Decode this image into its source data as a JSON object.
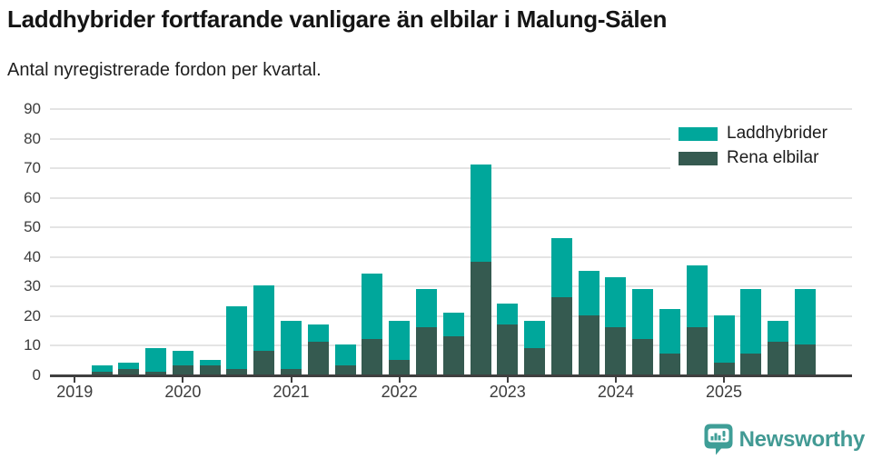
{
  "header": {
    "title": "Laddhybrider fortfarande vanligare än elbilar i Malung-Sälen",
    "subtitle": "Antal nyregistrerade fordon per kvartal."
  },
  "chart_data": {
    "type": "bar",
    "stacked": true,
    "title": "Laddhybrider fortfarande vanligare än elbilar i Malung-Sälen",
    "subtitle": "Antal nyregistrerade fordon per kvartal.",
    "categories": [
      "2019 Q1",
      "2019 Q2",
      "2019 Q3",
      "2019 Q4",
      "2020 Q1",
      "2020 Q2",
      "2020 Q3",
      "2020 Q4",
      "2021 Q1",
      "2021 Q2",
      "2021 Q3",
      "2021 Q4",
      "2022 Q1",
      "2022 Q2",
      "2022 Q3",
      "2022 Q4",
      "2023 Q1",
      "2023 Q2",
      "2023 Q3",
      "2023 Q4",
      "2024 Q1",
      "2024 Q2",
      "2024 Q3",
      "2024 Q4",
      "2025 Q1",
      "2025 Q2",
      "2025 Q3",
      "2025 Q4"
    ],
    "series": [
      {
        "name": "Laddhybrider",
        "color": "#00a79b",
        "values": [
          0,
          2,
          2,
          8,
          5,
          2,
          21,
          22,
          16,
          6,
          7,
          22,
          13,
          13,
          8,
          33,
          7,
          9,
          20,
          15,
          17,
          17,
          15,
          21,
          16,
          22,
          7,
          19
        ]
      },
      {
        "name": "Rena elbilar",
        "color": "#355a50",
        "values": [
          0,
          1,
          2,
          1,
          3,
          3,
          2,
          8,
          2,
          11,
          3,
          12,
          5,
          16,
          13,
          38,
          17,
          9,
          26,
          20,
          16,
          12,
          7,
          16,
          4,
          7,
          11,
          10
        ]
      }
    ],
    "stack_totals": [
      0,
      3,
      4,
      9,
      8,
      5,
      23,
      30,
      18,
      17,
      10,
      34,
      18,
      29,
      21,
      71,
      24,
      18,
      46,
      35,
      33,
      29,
      22,
      37,
      20,
      29,
      18,
      29
    ],
    "stack_order_bottom_to_top": [
      "Rena elbilar",
      "Laddhybrider"
    ],
    "ylim": [
      0,
      90
    ],
    "yticks": [
      0,
      10,
      20,
      30,
      40,
      50,
      60,
      70,
      80,
      90
    ],
    "xticks_labels": [
      "2019",
      "2020",
      "2021",
      "2022",
      "2023",
      "2024",
      "2025"
    ],
    "grid": true,
    "legend_position": "top-right",
    "colors": {
      "grid": "#e4e4e4",
      "axis": "#3f3f3f",
      "tick_text": "#3c3c3c"
    }
  },
  "footer": {
    "brand": "Newsworthy"
  }
}
